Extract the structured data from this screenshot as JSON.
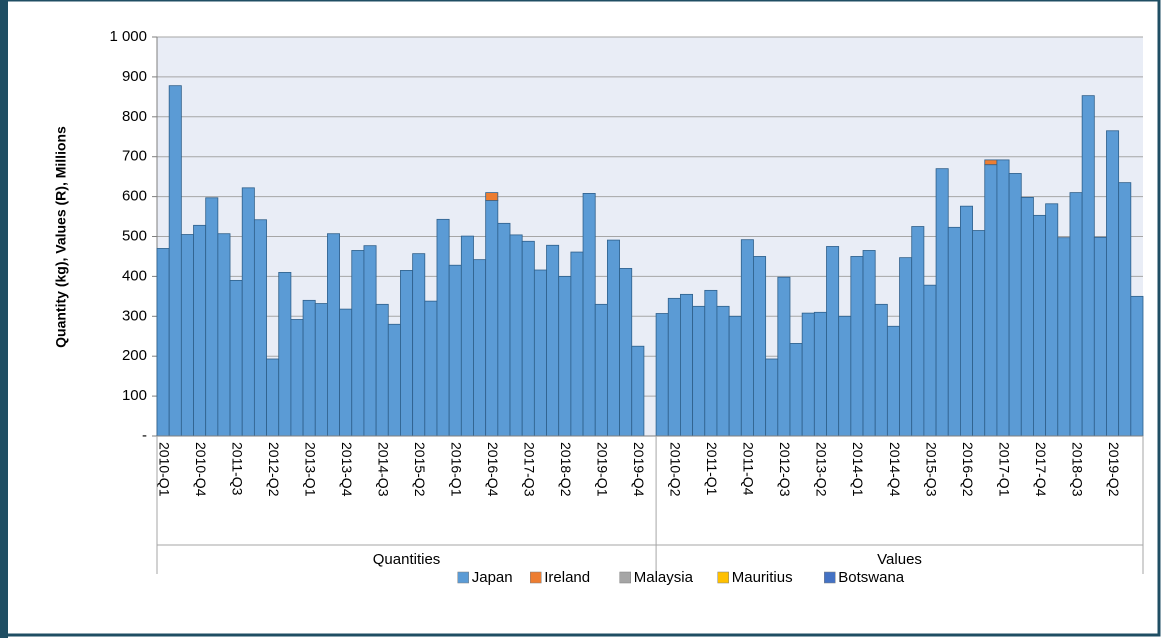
{
  "chart_data": {
    "type": "stacked-bar",
    "y_label": "Quantity (kg), Values (R), Millions",
    "group_labels": [
      "Quantities",
      "Values"
    ],
    "categories": [
      "2010-Q1",
      null,
      null,
      "2010-Q4",
      null,
      null,
      "2011-Q3",
      null,
      null,
      "2012-Q2",
      null,
      null,
      "2013-Q1",
      null,
      null,
      "2013-Q4",
      null,
      null,
      "2014-Q3",
      null,
      null,
      "2015-Q2",
      null,
      null,
      "2016-Q1",
      null,
      null,
      "2016-Q4",
      null,
      null,
      "2017-Q3",
      null,
      null,
      "2018-Q2",
      null,
      null,
      "2019-Q1",
      null,
      null,
      "2019-Q4",
      null,
      null,
      "2010-Q2",
      null,
      null,
      "2011-Q1",
      null,
      null,
      "2011-Q4",
      null,
      null,
      "2012-Q3",
      null,
      null,
      "2013-Q2",
      null,
      null,
      "2014-Q1",
      null,
      null,
      "2014-Q4",
      null,
      null,
      "2015-Q3",
      null,
      null,
      "2016-Q2",
      null,
      null,
      "2017-Q1",
      null,
      null,
      "2017-Q4",
      null,
      null,
      "2018-Q3",
      null,
      null,
      "2019-Q2",
      null,
      null
    ],
    "series": [
      {
        "name": "Japan",
        "color": "#5b9bd5",
        "values": [
          470,
          878,
          505,
          528,
          597,
          507,
          390,
          622,
          542,
          193,
          410,
          292,
          340,
          332,
          507,
          318,
          465,
          477,
          330,
          280,
          415,
          457,
          338,
          543,
          428,
          501,
          442,
          590,
          533,
          504,
          488,
          416,
          478,
          400,
          461,
          608,
          330,
          491,
          420,
          225,
          null,
          307,
          345,
          355,
          325,
          365,
          325,
          300,
          492,
          450,
          193,
          398,
          232,
          308,
          310,
          475,
          300,
          450,
          465,
          330,
          275,
          447,
          525,
          378,
          670,
          523,
          576,
          515,
          680,
          692,
          658,
          598,
          553,
          582,
          497,
          610,
          853,
          498,
          765,
          635,
          350
        ]
      },
      {
        "name": "Ireland",
        "color": "#ed7d31",
        "values": [
          0,
          0,
          0,
          0,
          0,
          0,
          0,
          0,
          0,
          0,
          0,
          0,
          0,
          0,
          0,
          0,
          0,
          0,
          0,
          0,
          0,
          0,
          0,
          0,
          0,
          0,
          0,
          20,
          0,
          0,
          0,
          0,
          0,
          0,
          0,
          0,
          0,
          0,
          0,
          0,
          null,
          0,
          0,
          0,
          0,
          0,
          0,
          0,
          0,
          0,
          0,
          0,
          0,
          0,
          0,
          0,
          0,
          0,
          0,
          0,
          0,
          0,
          0,
          0,
          0,
          0,
          0,
          0,
          12,
          0,
          0,
          0,
          0,
          0,
          0,
          0,
          0,
          0,
          0,
          0,
          0
        ]
      },
      {
        "name": "Malaysia",
        "color": "#a5a5a5",
        "values": [
          0,
          0,
          0,
          0,
          0,
          0,
          0,
          0,
          0,
          0,
          0,
          0,
          0,
          0,
          0,
          0,
          0,
          0,
          0,
          0,
          0,
          0,
          0,
          0,
          0,
          0,
          0,
          0,
          0,
          0,
          0,
          0,
          0,
          0,
          0,
          0,
          0,
          0,
          0,
          0,
          null,
          0,
          0,
          0,
          0,
          0,
          0,
          0,
          0,
          0,
          0,
          0,
          0,
          0,
          0,
          0,
          0,
          0,
          0,
          0,
          0,
          0,
          0,
          0,
          0,
          0,
          0,
          0,
          0,
          0,
          0,
          0,
          0,
          0,
          0,
          0,
          0,
          0,
          0,
          0,
          0
        ]
      },
      {
        "name": "Mauritius",
        "color": "#ffc000",
        "values": [
          0,
          0,
          0,
          0,
          0,
          0,
          0,
          0,
          0,
          0,
          0,
          0,
          0,
          0,
          0,
          0,
          0,
          0,
          0,
          0,
          0,
          0,
          0,
          0,
          0,
          0,
          0,
          0,
          0,
          0,
          0,
          0,
          0,
          0,
          0,
          0,
          0,
          0,
          0,
          0,
          null,
          0,
          0,
          0,
          0,
          0,
          0,
          0,
          0,
          0,
          0,
          0,
          0,
          0,
          0,
          0,
          0,
          0,
          0,
          0,
          0,
          0,
          0,
          0,
          0,
          0,
          0,
          0,
          0,
          0,
          0,
          0,
          0,
          0,
          0,
          0,
          0,
          0,
          0,
          0,
          0
        ]
      },
      {
        "name": "Botswana",
        "color": "#4472c4",
        "values": [
          0,
          0,
          0,
          0,
          0,
          0,
          0,
          0,
          0,
          0,
          0,
          0,
          0,
          0,
          0,
          0,
          0,
          0,
          0,
          0,
          0,
          0,
          0,
          0,
          0,
          0,
          0,
          0,
          0,
          0,
          0,
          0,
          0,
          0,
          0,
          0,
          0,
          0,
          0,
          0,
          null,
          0,
          0,
          0,
          0,
          0,
          0,
          0,
          0,
          0,
          0,
          0,
          0,
          0,
          0,
          0,
          0,
          0,
          0,
          0,
          0,
          0,
          0,
          0,
          0,
          0,
          0,
          0,
          0,
          0,
          0,
          0,
          0,
          0,
          0,
          0,
          0,
          0,
          0,
          0,
          0
        ]
      }
    ],
    "ylim": [
      0,
      1000
    ],
    "yticks": [
      {
        "value": 0,
        "label": "-"
      },
      100,
      200,
      300,
      400,
      500,
      600,
      700,
      800,
      900,
      {
        "value": 1000,
        "label": "1 000"
      }
    ],
    "grid": true,
    "legend": "bottom"
  }
}
